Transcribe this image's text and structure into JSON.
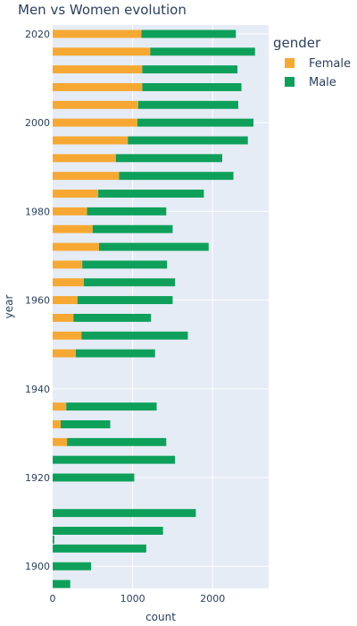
{
  "chart_data": {
    "type": "bar",
    "orientation": "horizontal",
    "stacked": true,
    "title": "Men vs Women evolution",
    "xlabel": "count",
    "ylabel": "year",
    "xlim": [
      0,
      2700
    ],
    "ylim": [
      1895,
      2022
    ],
    "x_ticks": [
      0,
      1000,
      2000
    ],
    "y_ticks": [
      1900,
      1920,
      1940,
      1960,
      1980,
      2000,
      2020
    ],
    "legend": {
      "title": "gender",
      "position": "top-right"
    },
    "grid": true,
    "colors": {
      "Female": "#F7A833",
      "Male": "#0EA05A",
      "plot_bg": "#E5ECF6"
    },
    "categories": [
      1896,
      1900,
      1904,
      1906,
      1908,
      1912,
      1920,
      1924,
      1928,
      1932,
      1936,
      1948,
      1952,
      1956,
      1960,
      1964,
      1968,
      1972,
      1976,
      1980,
      1984,
      1988,
      1992,
      1996,
      2000,
      2004,
      2008,
      2012,
      2016,
      2020
    ],
    "series": [
      {
        "name": "Female",
        "values": [
          0,
          0,
          0,
          0,
          0,
          0,
          0,
          0,
          180,
          100,
          170,
          290,
          360,
          260,
          310,
          390,
          370,
          580,
          500,
          430,
          570,
          830,
          790,
          940,
          1060,
          1070,
          1120,
          1120,
          1220,
          1110
        ]
      },
      {
        "name": "Male",
        "values": [
          220,
          480,
          1170,
          20,
          1380,
          1790,
          1020,
          1530,
          1240,
          620,
          1130,
          990,
          1330,
          970,
          1190,
          1140,
          1060,
          1370,
          1000,
          990,
          1320,
          1430,
          1330,
          1500,
          1450,
          1250,
          1240,
          1190,
          1310,
          1180
        ]
      }
    ]
  }
}
